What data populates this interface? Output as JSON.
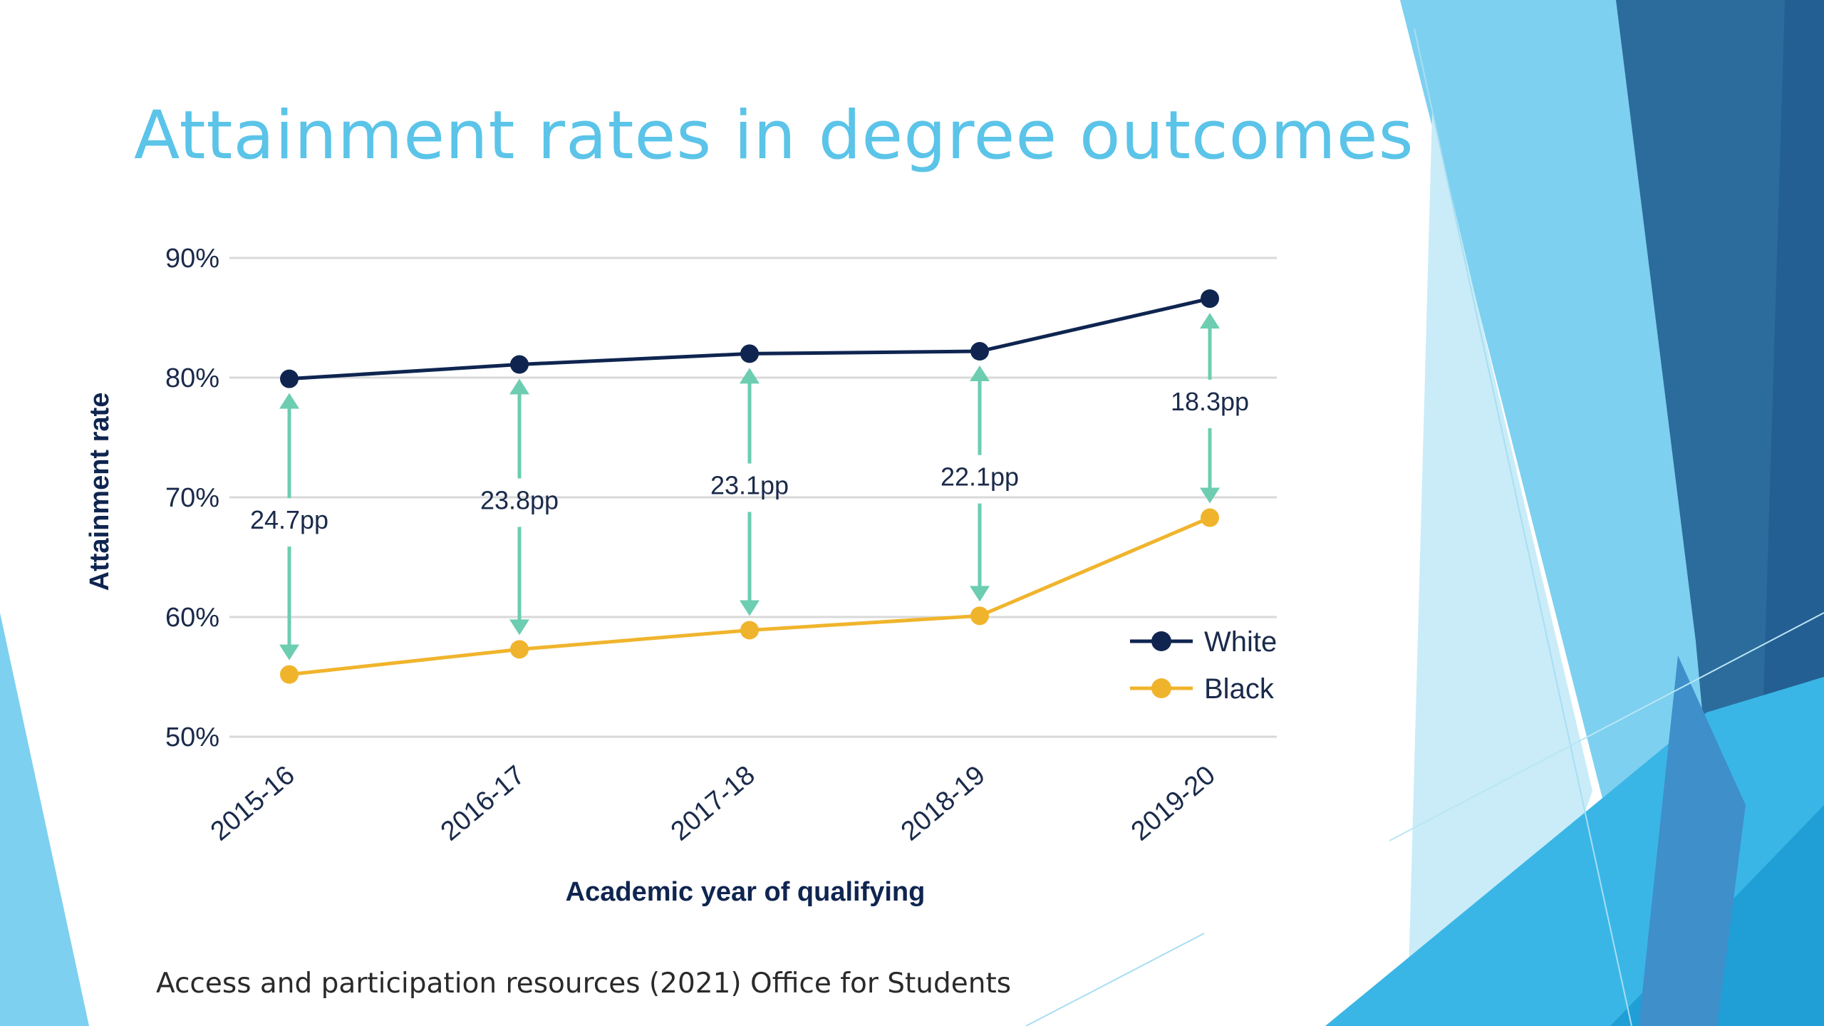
{
  "slide": {
    "title": "Attainment rates in degree outcomes",
    "source": "Access and participation resources (2021) Office for Students"
  },
  "colors": {
    "title": "#5bc4e8",
    "white_series": "#0f2550",
    "black_series": "#f0b42c",
    "gap_arrow": "#6ccdb0",
    "grid": "#d9d9d9",
    "axis_text": "#1a2a4a",
    "decor_dark": "#2c6c9c",
    "decor_light": "#7dd0ef"
  },
  "chart_data": {
    "type": "line",
    "xlabel": "Academic year of qualifying",
    "ylabel": "Attainment rate",
    "ylim": [
      50,
      90
    ],
    "yticks": [
      50,
      60,
      70,
      80,
      90
    ],
    "ytick_labels": [
      "50%",
      "60%",
      "70%",
      "80%",
      "90%"
    ],
    "categories": [
      "2015-16",
      "2016-17",
      "2017-18",
      "2018-19",
      "2019-20"
    ],
    "grid": true,
    "legend_position": "right",
    "series": [
      {
        "name": "White",
        "values": [
          79.9,
          81.1,
          82.0,
          82.2,
          86.6
        ]
      },
      {
        "name": "Black",
        "values": [
          55.2,
          57.3,
          58.9,
          60.1,
          68.3
        ]
      }
    ],
    "gaps": [
      "24.7pp",
      "23.8pp",
      "23.1pp",
      "22.1pp",
      "18.3pp"
    ]
  }
}
